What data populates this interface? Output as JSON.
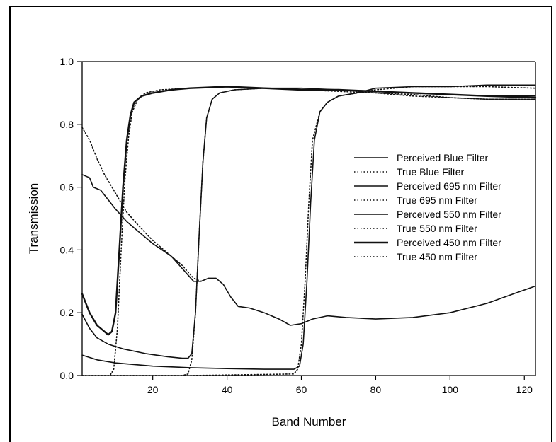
{
  "chart_data": {
    "type": "line",
    "title": "",
    "xlabel": "Band Number",
    "ylabel": "Transmission",
    "xlim": [
      1,
      123
    ],
    "ylim": [
      0.0,
      1.0
    ],
    "x_ticks": [
      20,
      40,
      60,
      80,
      100,
      120
    ],
    "y_ticks": [
      0.0,
      0.2,
      0.4,
      0.6,
      0.8,
      1.0
    ],
    "x_tick_labels": [
      "20",
      "40",
      "60",
      "80",
      "100",
      "120"
    ],
    "y_tick_labels": [
      "0.0",
      "0.2",
      "0.4",
      "0.6",
      "0.8",
      "1.0"
    ],
    "grid": false,
    "legend_position": "right",
    "series": [
      {
        "name": "Perceived Blue Filter",
        "style": "solid",
        "width": 1.6,
        "points": [
          [
            1,
            0.64
          ],
          [
            3,
            0.63
          ],
          [
            4,
            0.6
          ],
          [
            6,
            0.59
          ],
          [
            8,
            0.56
          ],
          [
            10,
            0.53
          ],
          [
            13,
            0.49
          ],
          [
            16,
            0.46
          ],
          [
            20,
            0.42
          ],
          [
            25,
            0.38
          ],
          [
            28,
            0.34
          ],
          [
            31,
            0.3
          ],
          [
            33,
            0.3
          ],
          [
            35,
            0.31
          ],
          [
            37,
            0.31
          ],
          [
            39,
            0.29
          ],
          [
            41,
            0.25
          ],
          [
            43,
            0.22
          ],
          [
            46,
            0.215
          ],
          [
            50,
            0.2
          ],
          [
            54,
            0.18
          ],
          [
            57,
            0.16
          ],
          [
            60,
            0.165
          ],
          [
            63,
            0.18
          ],
          [
            67,
            0.19
          ],
          [
            72,
            0.185
          ],
          [
            80,
            0.18
          ],
          [
            90,
            0.185
          ],
          [
            100,
            0.2
          ],
          [
            110,
            0.23
          ],
          [
            117,
            0.26
          ],
          [
            123,
            0.285
          ]
        ]
      },
      {
        "name": "True Blue Filter",
        "style": "dotted",
        "width": 1.6,
        "points": [
          [
            1,
            0.79
          ],
          [
            3,
            0.75
          ],
          [
            5,
            0.69
          ],
          [
            7,
            0.64
          ],
          [
            9,
            0.6
          ],
          [
            11,
            0.56
          ],
          [
            13,
            0.52
          ],
          [
            16,
            0.48
          ],
          [
            20,
            0.43
          ],
          [
            25,
            0.38
          ],
          [
            28,
            0.35
          ],
          [
            31,
            0.31
          ],
          [
            33,
            0.3
          ]
        ]
      },
      {
        "name": "Perceived 695 nm Filter",
        "style": "solid",
        "width": 1.6,
        "points": [
          [
            1,
            0.065
          ],
          [
            5,
            0.05
          ],
          [
            10,
            0.04
          ],
          [
            20,
            0.03
          ],
          [
            30,
            0.025
          ],
          [
            40,
            0.022
          ],
          [
            50,
            0.02
          ],
          [
            58,
            0.02
          ],
          [
            59.5,
            0.03
          ],
          [
            60.5,
            0.1
          ],
          [
            61.5,
            0.3
          ],
          [
            62.5,
            0.55
          ],
          [
            63.5,
            0.75
          ],
          [
            65,
            0.84
          ],
          [
            67,
            0.87
          ],
          [
            70,
            0.89
          ],
          [
            75,
            0.9
          ],
          [
            80,
            0.915
          ],
          [
            90,
            0.92
          ],
          [
            100,
            0.92
          ],
          [
            110,
            0.925
          ],
          [
            123,
            0.925
          ]
        ]
      },
      {
        "name": "True 695 nm Filter",
        "style": "dotted",
        "width": 1.6,
        "points": [
          [
            9.5,
            0
          ],
          [
            30,
            0
          ],
          [
            58,
            0.005
          ],
          [
            59,
            0.02
          ],
          [
            60,
            0.1
          ],
          [
            61,
            0.3
          ],
          [
            62,
            0.55
          ],
          [
            63,
            0.75
          ],
          [
            65,
            0.84
          ],
          [
            67,
            0.87
          ],
          [
            70,
            0.89
          ],
          [
            75,
            0.9
          ],
          [
            80,
            0.91
          ],
          [
            90,
            0.92
          ],
          [
            100,
            0.92
          ],
          [
            110,
            0.92
          ],
          [
            123,
            0.915
          ]
        ]
      },
      {
        "name": "Perceived 550 nm Filter",
        "style": "solid",
        "width": 1.6,
        "points": [
          [
            1,
            0.195
          ],
          [
            3,
            0.15
          ],
          [
            5,
            0.12
          ],
          [
            8,
            0.1
          ],
          [
            12,
            0.085
          ],
          [
            18,
            0.07
          ],
          [
            24,
            0.06
          ],
          [
            28,
            0.055
          ],
          [
            29.5,
            0.055
          ],
          [
            30.5,
            0.07
          ],
          [
            31.5,
            0.2
          ],
          [
            32.5,
            0.45
          ],
          [
            33.5,
            0.68
          ],
          [
            34.5,
            0.82
          ],
          [
            36,
            0.88
          ],
          [
            38,
            0.9
          ],
          [
            42,
            0.91
          ],
          [
            50,
            0.915
          ],
          [
            60,
            0.915
          ],
          [
            70,
            0.91
          ],
          [
            80,
            0.905
          ],
          [
            90,
            0.9
          ],
          [
            100,
            0.895
          ],
          [
            110,
            0.89
          ],
          [
            123,
            0.89
          ]
        ]
      },
      {
        "name": "True 550 nm Filter",
        "style": "dotted",
        "width": 1.6,
        "points": [
          [
            1,
            0
          ],
          [
            28,
            0
          ],
          [
            29.5,
            0.005
          ],
          [
            30.5,
            0.05
          ],
          [
            31.5,
            0.2
          ],
          [
            32.5,
            0.45
          ],
          [
            33.5,
            0.68
          ],
          [
            34.5,
            0.82
          ],
          [
            36,
            0.88
          ],
          [
            38,
            0.9
          ],
          [
            42,
            0.91
          ],
          [
            50,
            0.915
          ],
          [
            60,
            0.91
          ],
          [
            70,
            0.91
          ],
          [
            80,
            0.9
          ],
          [
            90,
            0.89
          ],
          [
            100,
            0.885
          ],
          [
            110,
            0.88
          ],
          [
            123,
            0.88
          ]
        ]
      },
      {
        "name": "Perceived 450 nm Filter",
        "style": "solid",
        "width": 2.4,
        "points": [
          [
            1,
            0.26
          ],
          [
            3,
            0.2
          ],
          [
            5,
            0.16
          ],
          [
            7,
            0.14
          ],
          [
            8,
            0.13
          ],
          [
            9,
            0.14
          ],
          [
            10,
            0.2
          ],
          [
            11,
            0.4
          ],
          [
            12,
            0.6
          ],
          [
            13,
            0.75
          ],
          [
            14,
            0.83
          ],
          [
            15,
            0.87
          ],
          [
            17,
            0.89
          ],
          [
            20,
            0.9
          ],
          [
            25,
            0.91
          ],
          [
            30,
            0.915
          ],
          [
            40,
            0.92
          ],
          [
            50,
            0.915
          ],
          [
            60,
            0.91
          ],
          [
            70,
            0.91
          ],
          [
            80,
            0.905
          ],
          [
            90,
            0.9
          ],
          [
            100,
            0.895
          ],
          [
            110,
            0.89
          ],
          [
            123,
            0.885
          ]
        ]
      },
      {
        "name": "True 450 nm Filter",
        "style": "dotted",
        "width": 1.6,
        "points": [
          [
            1,
            0
          ],
          [
            8.5,
            0
          ],
          [
            9.5,
            0.02
          ],
          [
            10.5,
            0.15
          ],
          [
            11.5,
            0.4
          ],
          [
            12.5,
            0.62
          ],
          [
            13.5,
            0.76
          ],
          [
            14.5,
            0.84
          ],
          [
            16,
            0.88
          ],
          [
            18,
            0.9
          ],
          [
            22,
            0.91
          ],
          [
            30,
            0.915
          ],
          [
            40,
            0.92
          ],
          [
            50,
            0.915
          ],
          [
            60,
            0.91
          ],
          [
            70,
            0.905
          ],
          [
            80,
            0.9
          ],
          [
            90,
            0.895
          ],
          [
            100,
            0.885
          ],
          [
            110,
            0.88
          ],
          [
            123,
            0.88
          ]
        ]
      }
    ]
  }
}
